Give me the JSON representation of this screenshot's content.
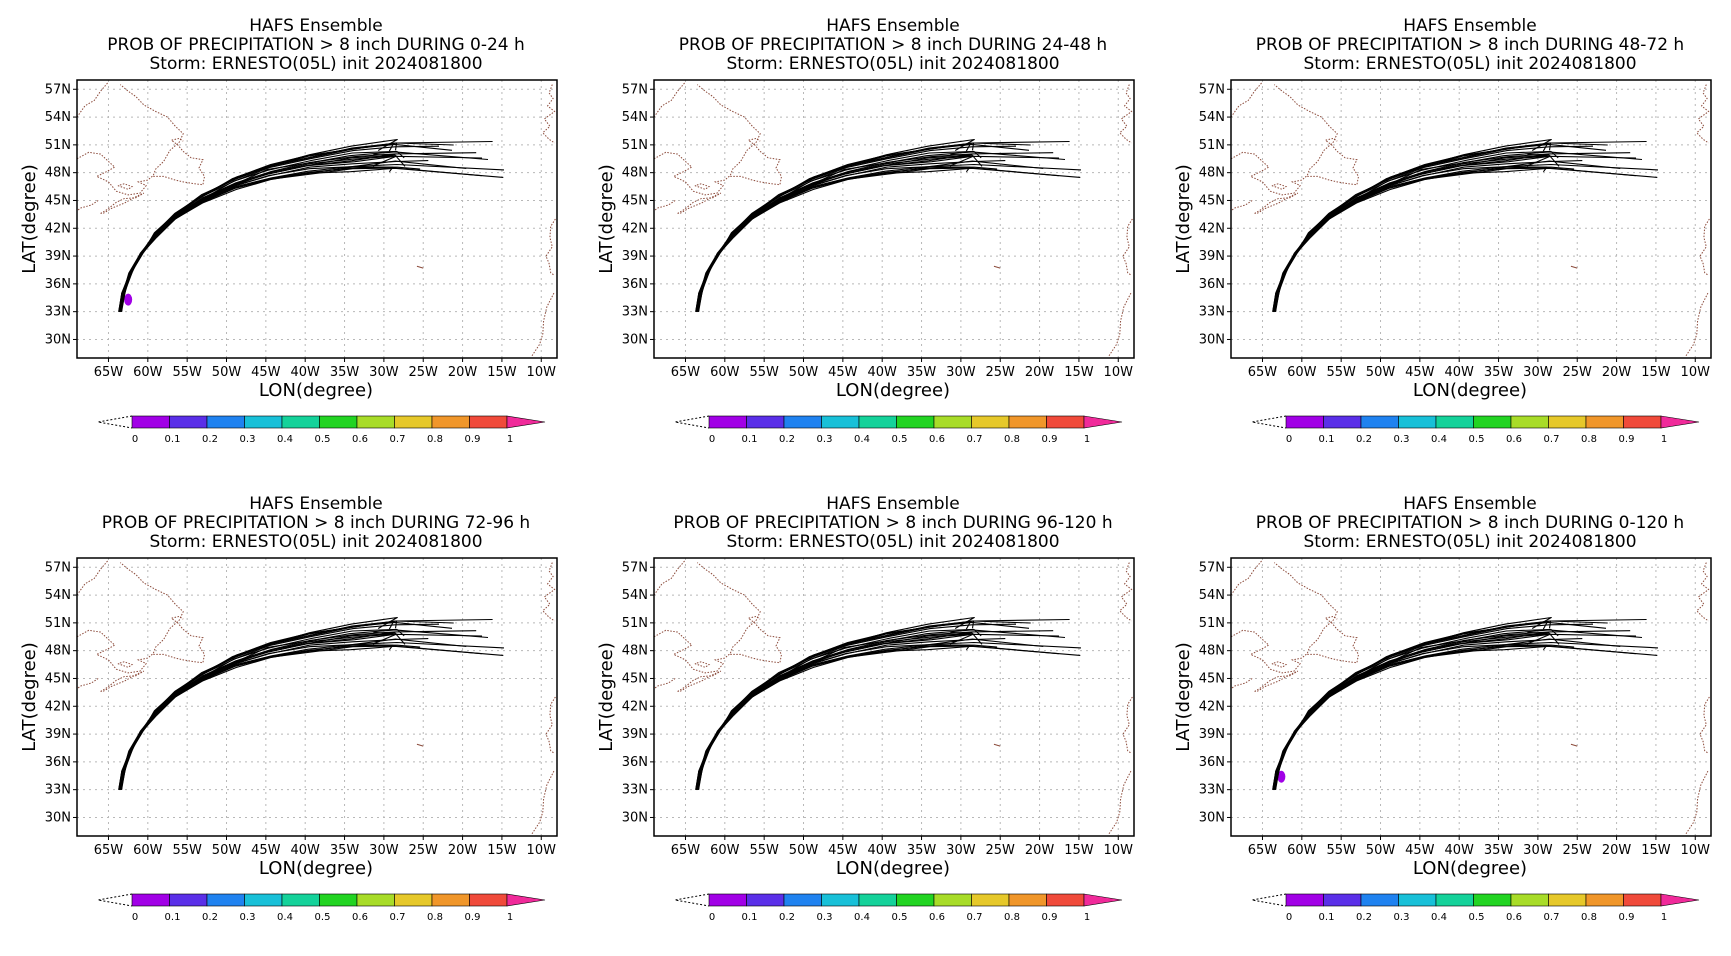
{
  "colors": {
    "track": "#000000",
    "coast": "#8b4a3a",
    "grid": "#b8b8b8",
    "colorbar": [
      "#a100e6",
      "#5a2fe8",
      "#1f82f0",
      "#18c0d8",
      "#14d29a",
      "#22d422",
      "#a8dc28",
      "#e6c82a",
      "#f0962a",
      "#f04a3a"
    ],
    "colorbar_over": "#f02a9a"
  },
  "common": {
    "title1": "HAFS Ensemble",
    "title3": "Storm: ERNESTO(05L) init 2024081800",
    "xlabel": "LON(degree)",
    "ylabel": "LAT(degree)",
    "xticks": [
      "65W",
      "60W",
      "55W",
      "50W",
      "45W",
      "40W",
      "35W",
      "30W",
      "25W",
      "20W",
      "15W",
      "10W"
    ],
    "yticks": [
      "57N",
      "54N",
      "51N",
      "48N",
      "45N",
      "42N",
      "39N",
      "36N",
      "33N",
      "30N"
    ],
    "colorbar_labels": [
      "0",
      "0.1",
      "0.2",
      "0.3",
      "0.4",
      "0.5",
      "0.6",
      "0.7",
      "0.8",
      "0.9",
      "1"
    ]
  },
  "panels": [
    {
      "title2": "PROB OF PRECIPITATION > 8 inch DURING  0-24 h"
    },
    {
      "title2": "PROB OF PRECIPITATION > 8 inch DURING 24-48 h"
    },
    {
      "title2": "PROB OF PRECIPITATION > 8 inch DURING 48-72 h"
    },
    {
      "title2": "PROB OF PRECIPITATION > 8 inch DURING 72-96 h"
    },
    {
      "title2": "PROB OF PRECIPITATION > 8 inch DURING 96-120 h"
    },
    {
      "title2": "PROB OF PRECIPITATION > 8 inch DURING 0-120 h"
    }
  ],
  "chart_data": [
    {
      "type": "map",
      "title": "HAFS Ensemble / PROB OF PRECIPITATION > 8 inch DURING  0-24 h",
      "xlabel": "LON(degree)",
      "ylabel": "LAT(degree)",
      "xlim": [
        -69,
        -8
      ],
      "ylim": [
        28,
        58
      ],
      "colorbar_range": [
        0,
        1
      ],
      "precip_prob_areas": [
        {
          "lon": -62.5,
          "lat": 34.3,
          "prob": 0.05
        }
      ],
      "ensemble_track_count": 21
    },
    {
      "type": "map",
      "title": "HAFS Ensemble / PROB OF PRECIPITATION > 8 inch DURING 24-48 h",
      "xlabel": "LON(degree)",
      "ylabel": "LAT(degree)",
      "xlim": [
        -69,
        -8
      ],
      "ylim": [
        28,
        58
      ],
      "colorbar_range": [
        0,
        1
      ],
      "precip_prob_areas": [],
      "ensemble_track_count": 21
    },
    {
      "type": "map",
      "title": "HAFS Ensemble / PROB OF PRECIPITATION > 8 inch DURING 48-72 h",
      "xlabel": "LON(degree)",
      "ylabel": "LAT(degree)",
      "xlim": [
        -69,
        -8
      ],
      "ylim": [
        28,
        58
      ],
      "colorbar_range": [
        0,
        1
      ],
      "precip_prob_areas": [],
      "ensemble_track_count": 21
    },
    {
      "type": "map",
      "title": "HAFS Ensemble / PROB OF PRECIPITATION > 8 inch DURING 72-96 h",
      "xlabel": "LON(degree)",
      "ylabel": "LAT(degree)",
      "xlim": [
        -69,
        -8
      ],
      "ylim": [
        28,
        58
      ],
      "colorbar_range": [
        0,
        1
      ],
      "precip_prob_areas": [],
      "ensemble_track_count": 21
    },
    {
      "type": "map",
      "title": "HAFS Ensemble / PROB OF PRECIPITATION > 8 inch DURING 96-120 h",
      "xlabel": "LON(degree)",
      "ylabel": "LAT(degree)",
      "xlim": [
        -69,
        -8
      ],
      "ylim": [
        28,
        58
      ],
      "colorbar_range": [
        0,
        1
      ],
      "precip_prob_areas": [],
      "ensemble_track_count": 21
    },
    {
      "type": "map",
      "title": "HAFS Ensemble / PROB OF PRECIPITATION > 8 inch DURING 0-120 h",
      "xlabel": "LON(degree)",
      "ylabel": "LAT(degree)",
      "xlim": [
        -69,
        -8
      ],
      "ylim": [
        28,
        58
      ],
      "colorbar_range": [
        0,
        1
      ],
      "precip_prob_areas": [
        {
          "lon": -62.6,
          "lat": 34.4,
          "prob": 0.05
        }
      ],
      "ensemble_track_count": 21
    }
  ]
}
